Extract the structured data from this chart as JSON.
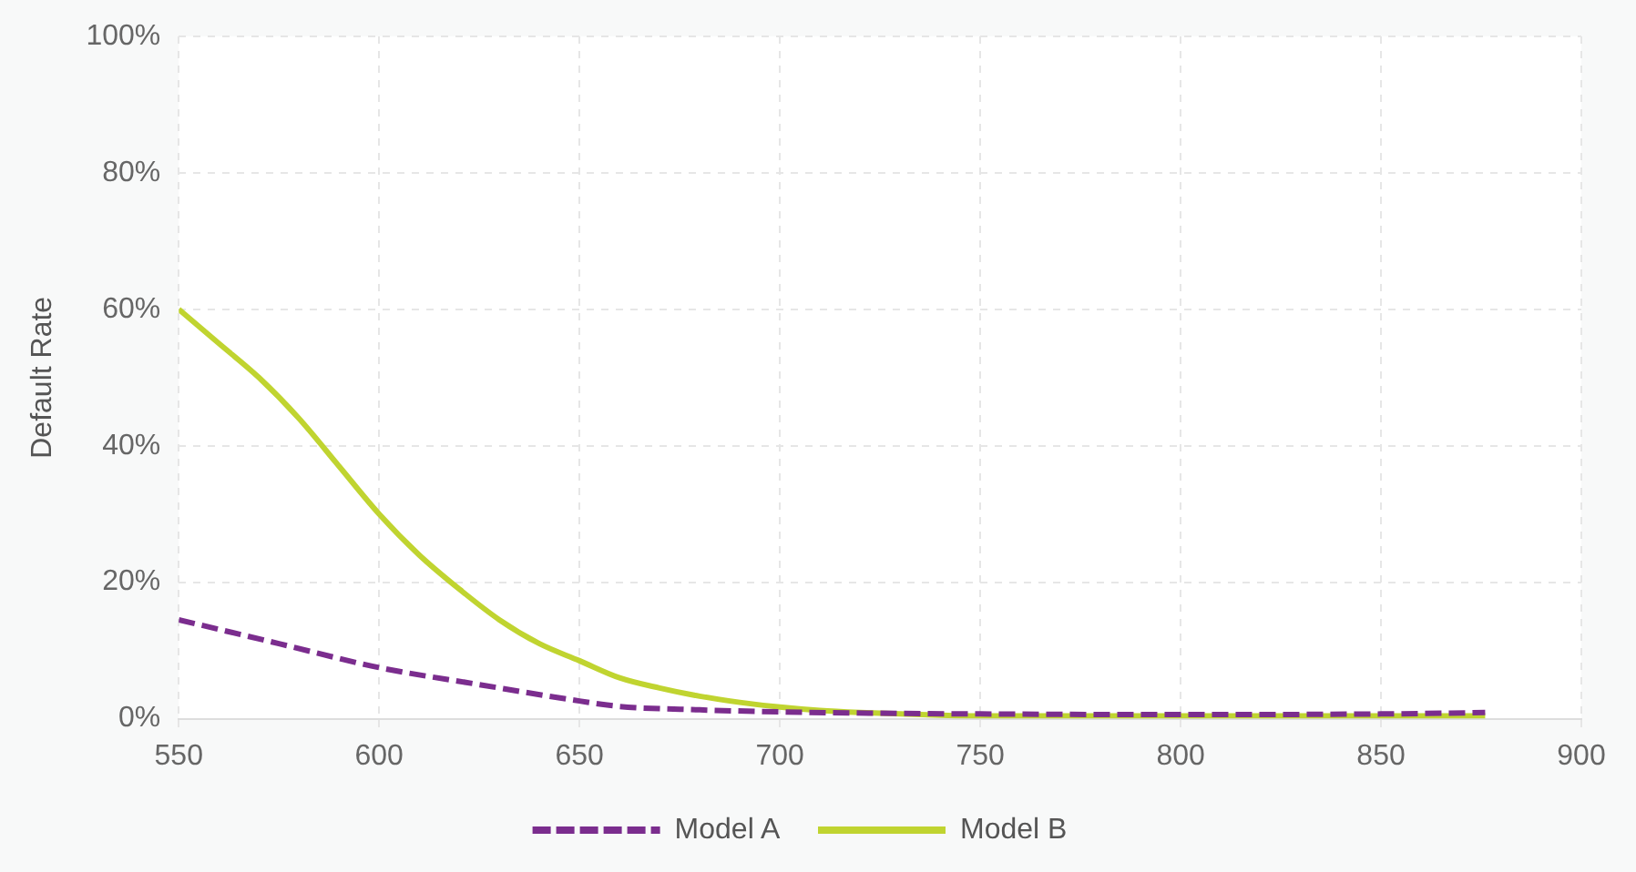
{
  "chart_data": {
    "type": "line",
    "ylabel": "Default Rate",
    "xlim": [
      550,
      900
    ],
    "xticks": [
      550,
      600,
      650,
      700,
      750,
      800,
      850,
      900
    ],
    "ylim": [
      0,
      100
    ],
    "yticks": [
      {
        "value": 0,
        "label": "0%"
      },
      {
        "value": 20,
        "label": "20%"
      },
      {
        "value": 40,
        "label": "40%"
      },
      {
        "value": 60,
        "label": "60%"
      },
      {
        "value": 80,
        "label": "80%"
      },
      {
        "value": 100,
        "label": "100%"
      }
    ],
    "grid": true,
    "legend": "bottom",
    "marker": "none",
    "series": [
      {
        "name": "Model A",
        "color": "#7b2d8e",
        "line_style": "dashed",
        "x": [
          550,
          575,
          600,
          625,
          650,
          660,
          680,
          700,
          725,
          750,
          800,
          850,
          876
        ],
        "values": [
          14.5,
          11,
          7.5,
          5,
          2.6,
          1.8,
          1.3,
          1,
          0.8,
          0.7,
          0.6,
          0.7,
          0.9
        ]
      },
      {
        "name": "Model B",
        "color": "#c0d430",
        "line_style": "solid",
        "x": [
          550,
          560,
          570,
          580,
          590,
          600,
          610,
          620,
          630,
          640,
          650,
          660,
          670,
          680,
          690,
          700,
          710,
          720,
          735,
          750,
          800,
          850,
          876
        ],
        "values": [
          60,
          55,
          50,
          44,
          37,
          30,
          24,
          19,
          14.5,
          11,
          8.5,
          6,
          4.5,
          3.3,
          2.4,
          1.7,
          1.2,
          0.9,
          0.6,
          0.4,
          0.4,
          0.4,
          0.4
        ]
      }
    ]
  }
}
